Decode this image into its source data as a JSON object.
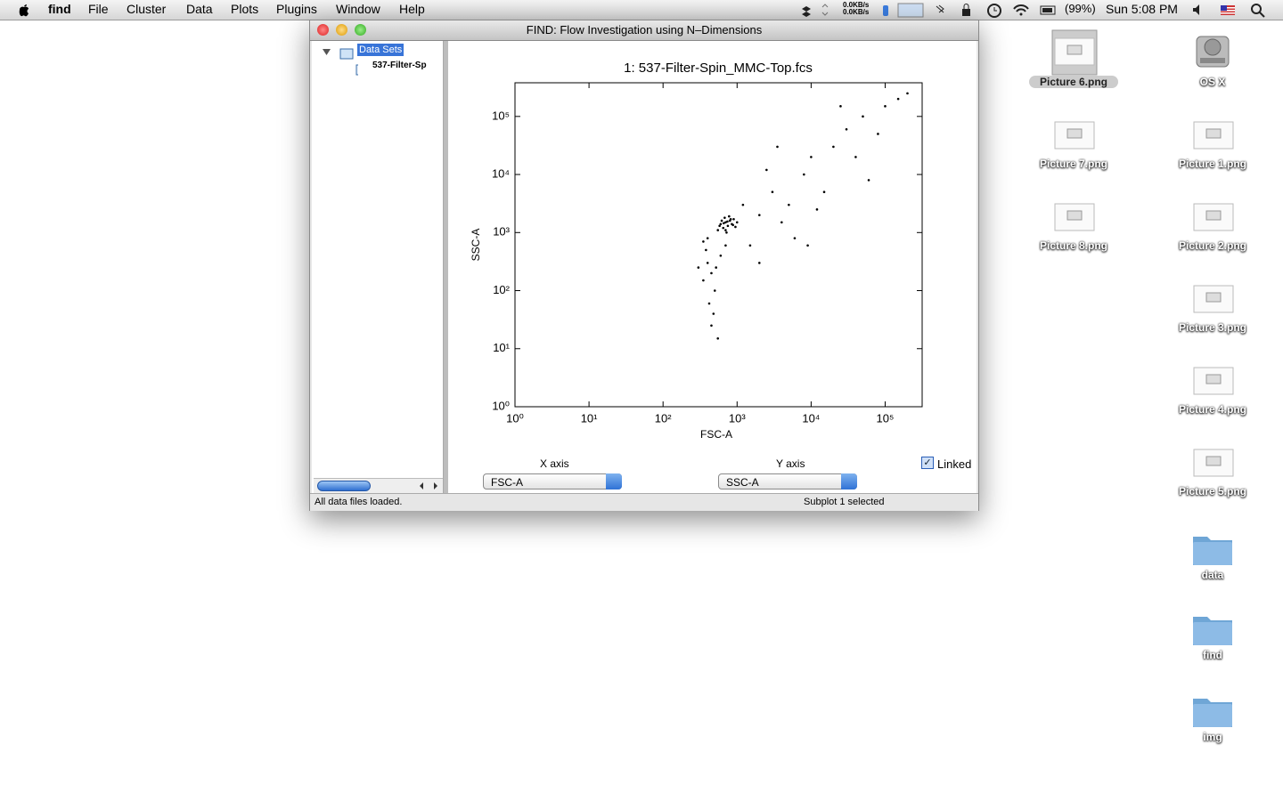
{
  "menu_bar": {
    "items": [
      "find",
      "File",
      "Cluster",
      "Data",
      "Plots",
      "Plugins",
      "Window",
      "Help"
    ],
    "status": {
      "network": [
        "0.0KB/s",
        "0.0KB/s"
      ],
      "battery": "(99%)",
      "clock": "Sun 5:08 PM"
    }
  },
  "window": {
    "title": "FIND: Flow Investigation using N–Dimensions",
    "tree": {
      "root": "Data Sets",
      "children": [
        "537-Filter-Sp"
      ]
    },
    "x_axis_label": "X axis",
    "y_axis_label": "Y axis",
    "x_select": "FSC-A",
    "y_select": "SSC-A",
    "linked": "Linked",
    "status_left": "All data files loaded.",
    "status_right": "Subplot 1 selected"
  },
  "chart_data": {
    "type": "scatter",
    "title": "1: 537-Filter-Spin_MMC-Top.fcs",
    "xlabel": "FSC-A",
    "ylabel": "SSC-A",
    "color": "#000000",
    "log_x": true,
    "log_y": true,
    "xlim": [
      1,
      316000
    ],
    "ylim": [
      1,
      380000
    ],
    "xticks": [
      {
        "value": 1,
        "label": "10⁰"
      },
      {
        "value": 10,
        "label": "10¹"
      },
      {
        "value": 100,
        "label": "10²"
      },
      {
        "value": 1000,
        "label": "10³"
      },
      {
        "value": 10000,
        "label": "10⁴"
      },
      {
        "value": 100000,
        "label": "10⁵"
      }
    ],
    "yticks": [
      {
        "value": 1,
        "label": "10⁰"
      },
      {
        "value": 10,
        "label": "10¹"
      },
      {
        "value": 100,
        "label": "10²"
      },
      {
        "value": 1000,
        "label": "10³"
      },
      {
        "value": 10000,
        "label": "10⁴"
      },
      {
        "value": 100000,
        "label": "10⁵"
      }
    ],
    "x": [
      600,
      700,
      800,
      650,
      750,
      900,
      550,
      850,
      680,
      720,
      1000,
      620,
      780,
      950,
      580,
      700,
      820,
      660,
      740,
      880,
      400,
      450,
      350,
      500,
      420,
      480,
      380,
      520,
      600,
      300,
      450,
      550,
      700,
      400,
      350,
      2000,
      3000,
      5000,
      8000,
      10000,
      20000,
      30000,
      50000,
      100000,
      150000,
      4000,
      6000,
      15000,
      2500,
      40000,
      80000,
      200000,
      1500,
      2000,
      12000,
      3500,
      25000,
      60000,
      1200,
      9000
    ],
    "y": [
      1400,
      1500,
      1600,
      1200,
      1300,
      1700,
      1100,
      1400,
      1800,
      1000,
      1500,
      1600,
      1900,
      1250,
      1300,
      1100,
      1700,
      1450,
      1550,
      1350,
      300,
      200,
      150,
      100,
      60,
      40,
      500,
      250,
      400,
      250,
      25,
      15,
      600,
      800,
      700,
      2000,
      5000,
      3000,
      10000,
      20000,
      30000,
      60000,
      100000,
      150000,
      200000,
      1500,
      800,
      5000,
      12000,
      20000,
      50000,
      250000,
      600,
      300,
      2500,
      30000,
      150000,
      8000,
      3000,
      600
    ]
  },
  "desktop": {
    "icons": [
      "Picture 6.png",
      "OS X",
      "Picture 7.png",
      "Picture 1.png",
      "Picture 8.png",
      "Picture 2.png",
      "Picture 3.png",
      "Picture 4.png",
      "Picture 5.png",
      "data",
      "find",
      "img"
    ]
  }
}
